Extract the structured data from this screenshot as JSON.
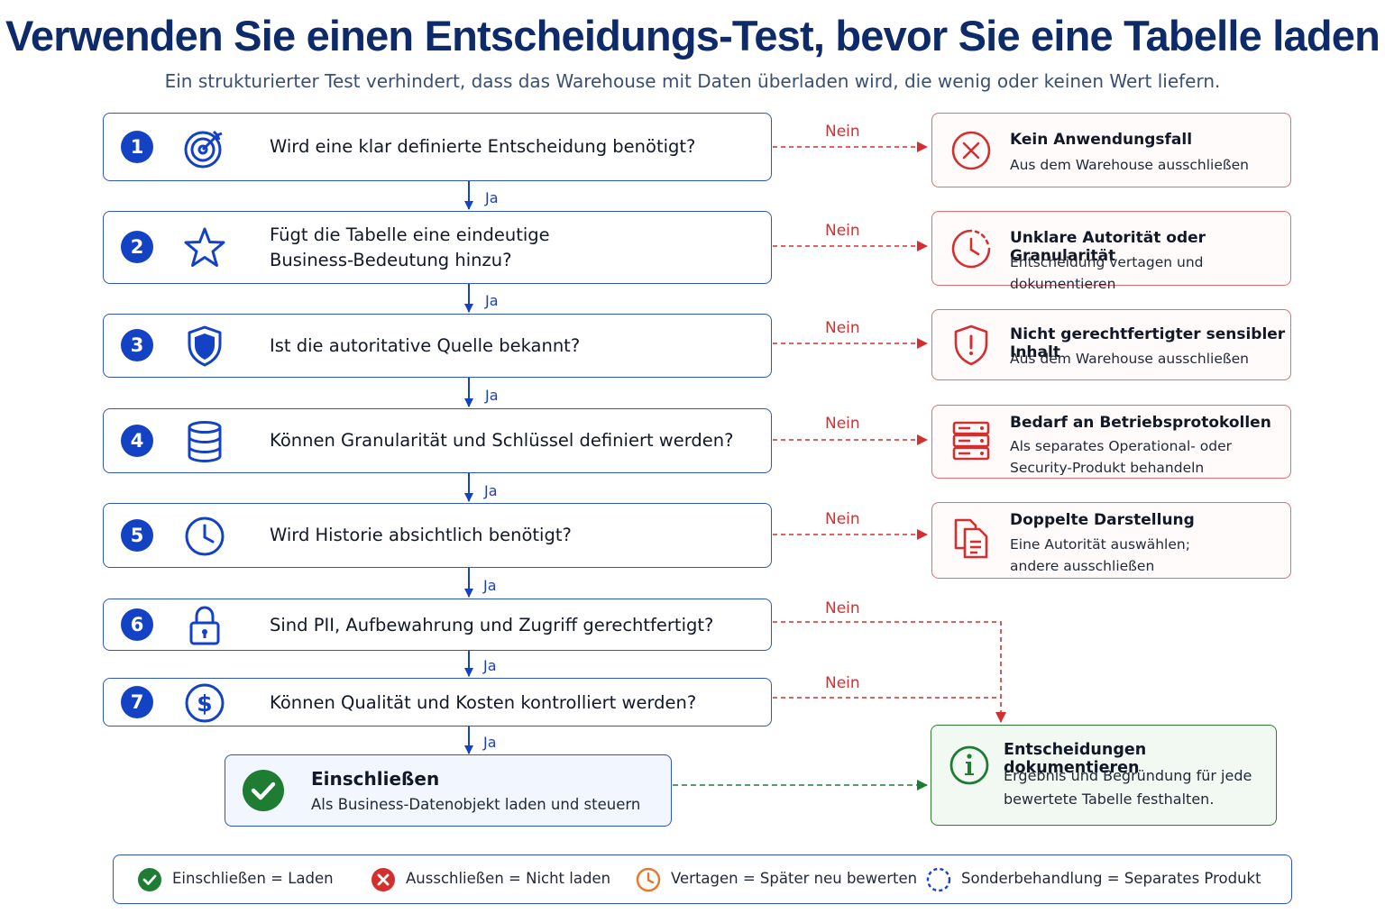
{
  "title": "Verwenden Sie einen Entscheidungs-Test, bevor Sie eine Tabelle laden",
  "subtitle": "Ein strukturierter Test verhindert, dass das Warehouse mit Daten überladen wird, die wenig oder keinen Wert liefern.",
  "yes_label": "Ja",
  "no_label": "Nein",
  "steps": [
    {
      "number": "1",
      "icon": "target-icon",
      "question": "Wird eine klar definierte Entscheidung benötigt?"
    },
    {
      "number": "2",
      "icon": "star-icon",
      "question": "Fügt die Tabelle eine eindeutige\nBusiness-Bedeutung hinzu?"
    },
    {
      "number": "3",
      "icon": "shield-icon",
      "question": "Ist die autoritative Quelle bekannt?"
    },
    {
      "number": "4",
      "icon": "database-icon",
      "question": "Können Granularität und Schlüssel definiert werden?"
    },
    {
      "number": "5",
      "icon": "clock-icon",
      "question": "Wird Historie absichtlich benötigt?"
    },
    {
      "number": "6",
      "icon": "lock-icon",
      "question": "Sind PII, Aufbewahrung und Zugriff gerechtfertigt?"
    },
    {
      "number": "7",
      "icon": "dollar-icon",
      "question": "Können Qualität und Kosten kontrolliert werden?"
    }
  ],
  "outcomes": [
    {
      "icon": "x-circle-icon",
      "title": "Kein Anwendungsfall",
      "text": "Aus dem Warehouse ausschließen"
    },
    {
      "icon": "clock-dashed-icon",
      "title": "Unklare Autorität oder Granularität",
      "text": "Entscheidung vertagen und dokumentieren"
    },
    {
      "icon": "shield-alert-icon",
      "title": "Nicht gerechtfertigter sensibler Inhalt",
      "text": "Aus dem Warehouse ausschließen"
    },
    {
      "icon": "server-icon",
      "title": "Bedarf an Betriebsprotokollen",
      "text": "Als separates Operational- oder\nSecurity-Produkt behandeln"
    },
    {
      "icon": "documents-icon",
      "title": "Doppelte Darstellung",
      "text": "Eine Autorität auswählen;\nandere ausschließen"
    }
  ],
  "include": {
    "icon": "check-circle-icon",
    "title": "Einschließen",
    "text": "Als Business-Datenobjekt laden und steuern"
  },
  "document": {
    "icon": "info-icon",
    "title": "Entscheidungen dokumentieren",
    "text": "Ergebnis und Begründung für jede\nbewertete Tabelle festhalten."
  },
  "legend": [
    {
      "icon": "check-circle-icon",
      "label": "Einschließen = Laden",
      "color": "#1e7d32"
    },
    {
      "icon": "x-circle-icon",
      "label": "Ausschließen = Nicht laden",
      "color": "#d32f2f"
    },
    {
      "icon": "clock-icon",
      "label": "Vertagen = Später neu bewerten",
      "color": "#e8772e"
    },
    {
      "icon": "dashed-circle-icon",
      "label": "Sonderbehandlung = Separates Produkt",
      "color": "#1442c5"
    }
  ],
  "colors": {
    "primary": "#1442c5",
    "no": "#d32f2f",
    "include": "#1e7d32",
    "title": "#0d2a6b"
  }
}
